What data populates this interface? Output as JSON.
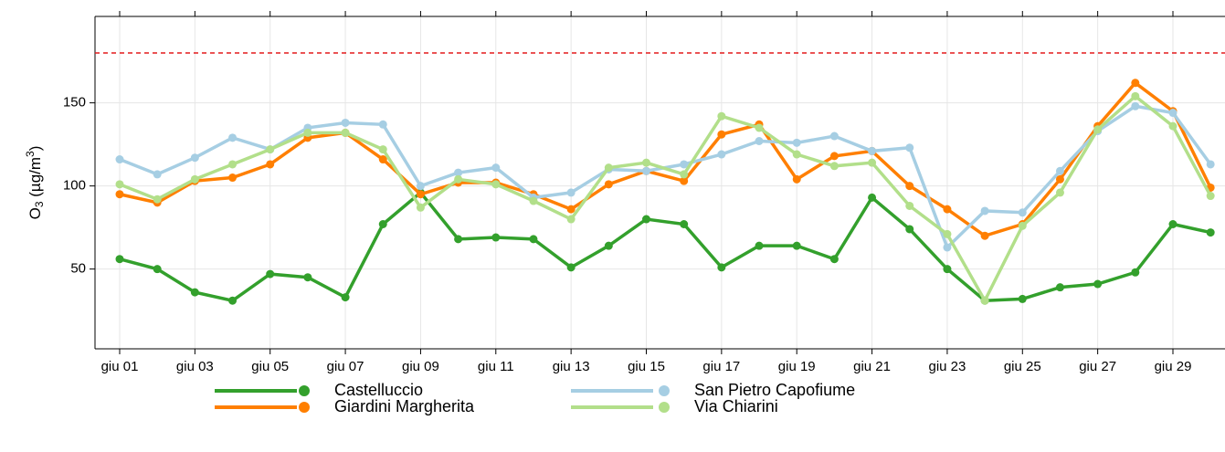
{
  "chart_data": {
    "type": "line",
    "ylabel": {
      "main": "O",
      "sub": "3",
      "mid": " (µg/m",
      "sup": "3",
      "end": ")"
    },
    "categories": [
      "giu 01",
      null,
      "giu 03",
      null,
      "giu 05",
      null,
      "giu 07",
      null,
      "giu 09",
      null,
      "giu 11",
      null,
      "giu 13",
      null,
      "giu 15",
      null,
      "giu 17",
      null,
      "giu 19",
      null,
      "giu 21",
      null,
      "giu 23",
      null,
      "giu 25",
      null,
      "giu 27",
      null,
      "giu 29",
      null
    ],
    "series": [
      {
        "name": "Castelluccio",
        "color": "#33a02c",
        "values": [
          56,
          50,
          36,
          31,
          47,
          45,
          33,
          77,
          96,
          68,
          69,
          68,
          51,
          64,
          80,
          77,
          51,
          64,
          64,
          56,
          93,
          74,
          50,
          31,
          32,
          39,
          41,
          48,
          77,
          72
        ]
      },
      {
        "name": "Giardini Margherita",
        "color": "#ff7f00",
        "values": [
          95,
          90,
          103,
          105,
          113,
          129,
          132,
          116,
          95,
          102,
          102,
          95,
          86,
          101,
          109,
          103,
          131,
          137,
          104,
          118,
          121,
          100,
          86,
          70,
          77,
          104,
          136,
          162,
          145,
          99
        ]
      },
      {
        "name": "San Pietro Capofiume",
        "color": "#a6cee3",
        "values": [
          116,
          107,
          117,
          129,
          122,
          135,
          138,
          137,
          100,
          108,
          111,
          93,
          96,
          110,
          109,
          113,
          119,
          127,
          126,
          130,
          121,
          123,
          63,
          85,
          84,
          109,
          133,
          148,
          144,
          113
        ]
      },
      {
        "name": "Via Chiarini",
        "color": "#b2df8a",
        "values": [
          101,
          92,
          104,
          113,
          122,
          132,
          132,
          122,
          87,
          104,
          101,
          91,
          80,
          111,
          114,
          107,
          142,
          135,
          119,
          112,
          114,
          88,
          71,
          31,
          76,
          96,
          134,
          154,
          136,
          94
        ]
      }
    ],
    "threshold": 180,
    "threshold_color": "#e31a1c",
    "ylim": [
      2,
      202
    ],
    "yticks": [
      50,
      100,
      150
    ],
    "grid": true
  }
}
